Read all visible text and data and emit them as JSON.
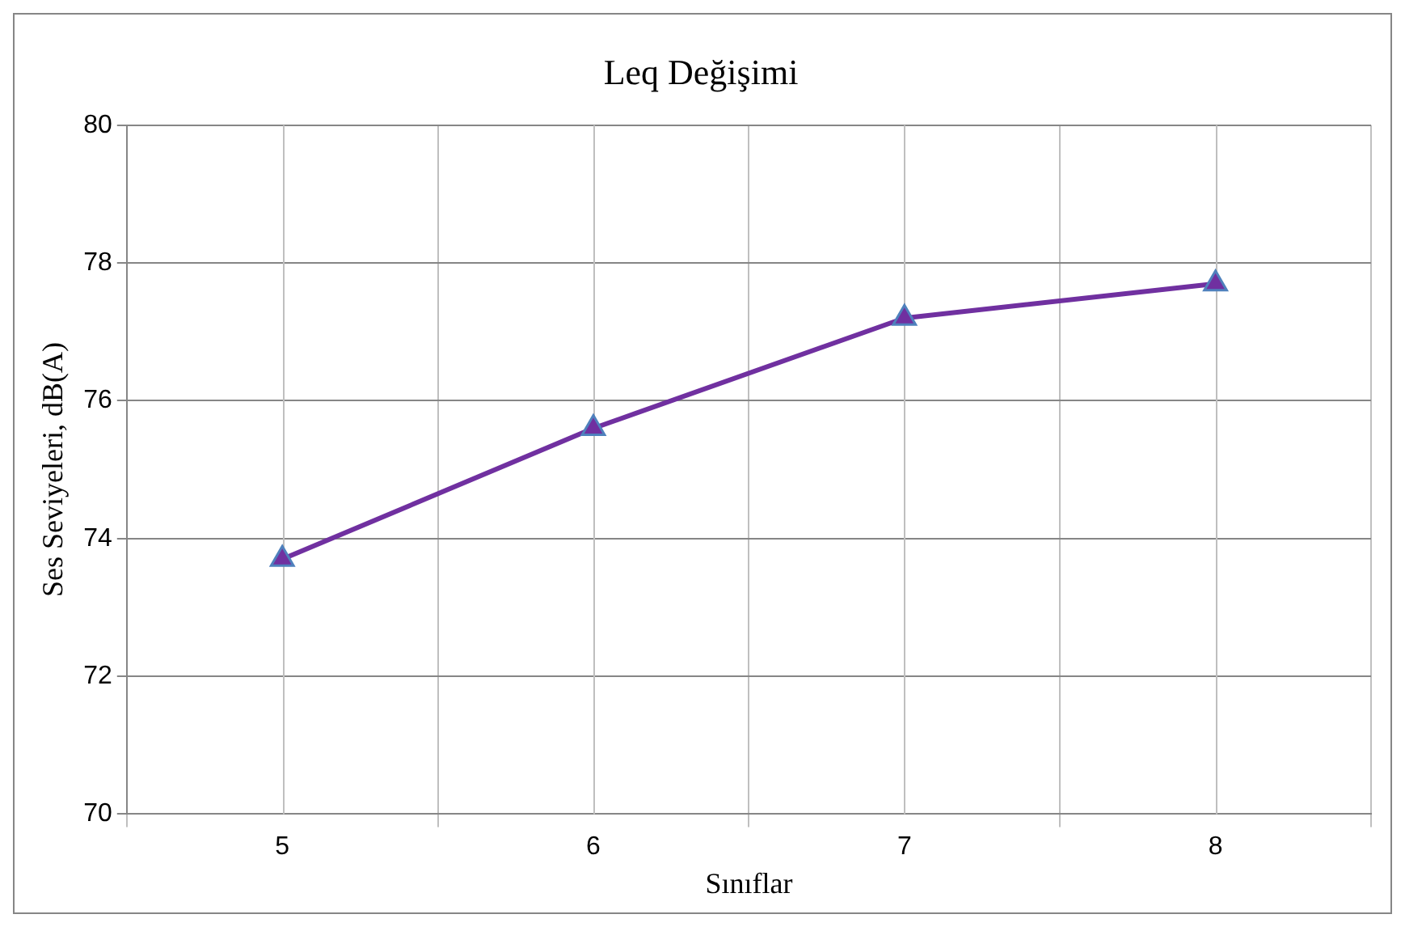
{
  "chart_data": {
    "type": "line",
    "title": "Leq Değişimi",
    "xlabel": "Sınıflar",
    "ylabel": "Ses Seviyeleri, dB(A)",
    "categories": [
      "5",
      "6",
      "7",
      "8"
    ],
    "series": [
      {
        "color": "#7030a0",
        "values": [
          73.7,
          75.6,
          77.2,
          77.7
        ]
      }
    ],
    "ylim": [
      70,
      80
    ],
    "yticks": [
      70,
      72,
      74,
      76,
      78,
      80
    ],
    "grid": true,
    "legend": false,
    "marker": "triangle",
    "line_style": "solid"
  }
}
